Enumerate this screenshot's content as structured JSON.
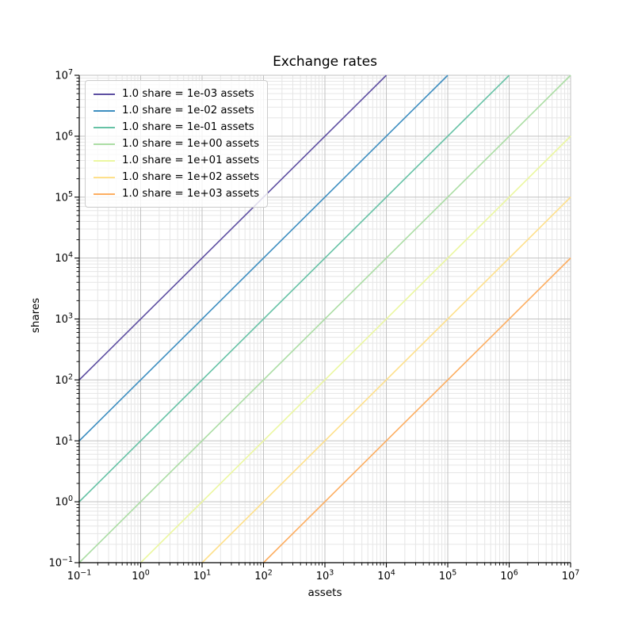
{
  "chart_data": {
    "type": "line",
    "title": "Exchange rates",
    "xlabel": "assets",
    "ylabel": "shares",
    "xscale": "log",
    "yscale": "log",
    "xlim": [
      0.1,
      10000000
    ],
    "ylim": [
      0.1,
      10000000
    ],
    "tick_label_base": "10",
    "x_tick_exponents": [
      -1,
      0,
      1,
      2,
      3,
      4,
      5,
      6,
      7
    ],
    "y_tick_exponents": [
      -1,
      0,
      1,
      2,
      3,
      4,
      5,
      6,
      7
    ],
    "grid": {
      "which": "both",
      "major_color": "#c2c2c2",
      "minor_color": "#e6e6e6"
    },
    "legend": {
      "position": "upper left",
      "border_color": "#cccccc",
      "background": "rgba(255,255,255,0.8)"
    },
    "series": [
      {
        "label": "1.0 share = 1e-03 assets",
        "assets_per_share": 0.001,
        "shares_per_asset": 1000,
        "color": "#5e4fa2",
        "points": [
          [
            0.1,
            100
          ],
          [
            10000,
            10000000
          ]
        ]
      },
      {
        "label": "1.0 share = 1e-02 assets",
        "assets_per_share": 0.01,
        "shares_per_asset": 100,
        "color": "#3d8ec0",
        "points": [
          [
            0.1,
            10
          ],
          [
            100000,
            10000000
          ]
        ]
      },
      {
        "label": "1.0 share = 1e-01 assets",
        "assets_per_share": 0.1,
        "shares_per_asset": 10,
        "color": "#66c2a5",
        "points": [
          [
            0.1,
            1
          ],
          [
            1000000,
            10000000
          ]
        ]
      },
      {
        "label": "1.0 share = 1e+00 assets",
        "assets_per_share": 1,
        "shares_per_asset": 1,
        "color": "#abdda4",
        "points": [
          [
            0.1,
            0.1
          ],
          [
            10000000,
            10000000
          ]
        ]
      },
      {
        "label": "1.0 share = 1e+01 assets",
        "assets_per_share": 10,
        "shares_per_asset": 0.1,
        "color": "#ebf7a0",
        "points": [
          [
            1,
            0.1
          ],
          [
            10000000,
            1000000
          ]
        ]
      },
      {
        "label": "1.0 share = 1e+02 assets",
        "assets_per_share": 100,
        "shares_per_asset": 0.01,
        "color": "#fee08b",
        "points": [
          [
            10,
            0.1
          ],
          [
            10000000,
            100000
          ]
        ]
      },
      {
        "label": "1.0 share = 1e+03 assets",
        "assets_per_share": 1000,
        "shares_per_asset": 0.001,
        "color": "#fdae61",
        "points": [
          [
            100,
            0.1
          ],
          [
            10000000,
            10000
          ]
        ]
      }
    ]
  }
}
